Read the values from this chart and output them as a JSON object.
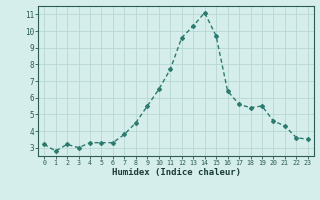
{
  "x": [
    0,
    1,
    2,
    3,
    4,
    5,
    6,
    7,
    8,
    9,
    10,
    11,
    12,
    13,
    14,
    15,
    16,
    17,
    18,
    19,
    20,
    21,
    22,
    23
  ],
  "y": [
    3.2,
    2.8,
    3.2,
    3.0,
    3.3,
    3.3,
    3.3,
    3.8,
    4.5,
    5.5,
    6.5,
    7.7,
    9.6,
    10.3,
    11.1,
    9.7,
    6.4,
    5.6,
    5.4,
    5.5,
    4.6,
    4.3,
    3.6,
    3.5
  ],
  "title": "",
  "xlabel": "Humidex (Indice chaleur)",
  "ylabel": "",
  "xlim": [
    -0.5,
    23.5
  ],
  "ylim": [
    2.5,
    11.5
  ],
  "yticks": [
    3,
    4,
    5,
    6,
    7,
    8,
    9,
    10,
    11
  ],
  "xticks": [
    0,
    1,
    2,
    3,
    4,
    5,
    6,
    7,
    8,
    9,
    10,
    11,
    12,
    13,
    14,
    15,
    16,
    17,
    18,
    19,
    20,
    21,
    22,
    23
  ],
  "line_color": "#2d7b6f",
  "marker": "D",
  "marker_size": 2.0,
  "bg_color": "#d5eeec",
  "grid_color": "#b8d8d4",
  "tick_label_color": "#2d5c52",
  "xlabel_color": "#1a3c34",
  "line_width": 1.0
}
